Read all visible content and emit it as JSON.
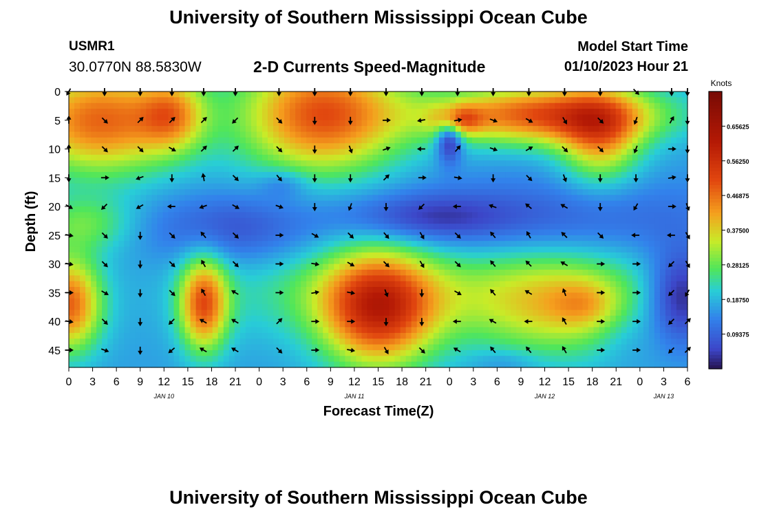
{
  "header": {
    "title": "University of Southern Mississippi Ocean Cube",
    "station_id": "USMR1",
    "coordinates": "30.0770N  88.5830W",
    "subtitle": "2-D Currents Speed-Magnitude",
    "model_start_label": "Model Start Time",
    "model_start_value": "01/10/2023 Hour 21"
  },
  "footer": {
    "title": "University of Southern Mississippi Ocean Cube"
  },
  "chart_data": {
    "type": "heatmap",
    "xlabel": "Forecast Time(Z)",
    "ylabel": "Depth (ft)",
    "x_ticks": [
      "0",
      "3",
      "6",
      "9",
      "12",
      "15",
      "18",
      "21",
      "0",
      "3",
      "6",
      "9",
      "12",
      "15",
      "18",
      "21",
      "0",
      "3",
      "6",
      "9",
      "12",
      "15",
      "18",
      "21",
      "0",
      "3",
      "6"
    ],
    "day_labels": [
      {
        "label": "JAN 10",
        "hour": 12
      },
      {
        "label": "JAN 11",
        "hour": 36
      },
      {
        "label": "JAN 12",
        "hour": 60
      },
      {
        "label": "JAN 13",
        "hour": 75
      }
    ],
    "xlim": [
      0,
      78
    ],
    "y_ticks": [
      "0",
      "5",
      "10",
      "15",
      "20",
      "25",
      "30",
      "35",
      "40",
      "45"
    ],
    "ylim": [
      0,
      48
    ],
    "colorbar": {
      "label": "Knots",
      "ticks": [
        "0.65625",
        "0.56250",
        "0.46875",
        "0.37500",
        "0.28125",
        "0.18750",
        "0.09375"
      ],
      "range": [
        0,
        0.75
      ]
    },
    "arrow_times": [
      0,
      4.5,
      9,
      13,
      17,
      21,
      26.5,
      31,
      35.5,
      40,
      44.5,
      49,
      53.5,
      58,
      62.5,
      67,
      71.5,
      76,
      78
    ],
    "arrow_depths": [
      0,
      5,
      10,
      15,
      20,
      25,
      30,
      35,
      40,
      45
    ],
    "arrow_directions_deg": [
      [
        210,
        180,
        180,
        180,
        180,
        180,
        180,
        180,
        180,
        180,
        180,
        180,
        180,
        180,
        180,
        180,
        135,
        180,
        180
      ],
      [
        0,
        135,
        45,
        45,
        45,
        225,
        135,
        180,
        180,
        90,
        260,
        80,
        110,
        120,
        150,
        135,
        200,
        30,
        180
      ],
      [
        0,
        135,
        135,
        120,
        45,
        45,
        135,
        180,
        160,
        70,
        270,
        40,
        110,
        60,
        135,
        135,
        200,
        90,
        180
      ],
      [
        180,
        90,
        250,
        180,
        350,
        135,
        140,
        180,
        180,
        45,
        90,
        100,
        180,
        135,
        160,
        180,
        180,
        80,
        180
      ],
      [
        120,
        225,
        240,
        270,
        250,
        120,
        110,
        180,
        200,
        180,
        225,
        270,
        290,
        310,
        300,
        180,
        210,
        90,
        160
      ],
      [
        100,
        135,
        180,
        135,
        320,
        135,
        90,
        120,
        135,
        140,
        150,
        135,
        320,
        330,
        315,
        135,
        270,
        270,
        150
      ],
      [
        100,
        135,
        180,
        135,
        330,
        135,
        90,
        100,
        120,
        135,
        150,
        135,
        320,
        315,
        300,
        90,
        90,
        225,
        150
      ],
      [
        90,
        120,
        180,
        135,
        330,
        300,
        90,
        80,
        100,
        160,
        180,
        120,
        320,
        300,
        340,
        90,
        90,
        225,
        210
      ],
      [
        100,
        135,
        180,
        225,
        300,
        300,
        45,
        90,
        90,
        180,
        180,
        270,
        300,
        270,
        330,
        90,
        90,
        225,
        45
      ],
      [
        90,
        110,
        180,
        230,
        300,
        300,
        135,
        90,
        100,
        150,
        135,
        300,
        320,
        320,
        330,
        90,
        90,
        225,
        45
      ]
    ]
  }
}
